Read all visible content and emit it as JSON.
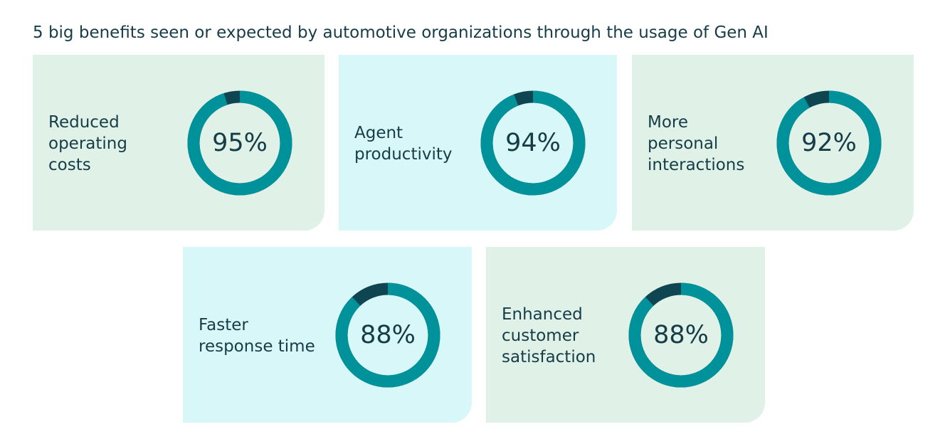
{
  "title": "5 big benefits seen or expected by automotive organizations through the usage of Gen AI",
  "colors": {
    "filled": "#00929a",
    "remainder": "#0e4550",
    "card_green": "#e0f1e8",
    "card_cyan": "#d8f7f8",
    "text": "#163d47"
  },
  "chart_data": {
    "type": "pie",
    "title": "5 big benefits seen or expected by automotive organizations through the usage of Gen AI",
    "categories": [
      "Reduced operating costs",
      "Agent productivity",
      "More personal interactions",
      "Faster response time",
      "Enhanced customer satisfaction"
    ],
    "values": [
      95,
      94,
      92,
      88,
      88
    ],
    "unit": "%",
    "cards": [
      {
        "label": "Reduced\noperating\ncosts",
        "value": 95,
        "value_label": "95%",
        "bg": "card_green"
      },
      {
        "label": "Agent\nproductivity",
        "value": 94,
        "value_label": "94%",
        "bg": "card_cyan"
      },
      {
        "label": "More\npersonal\ninteractions",
        "value": 92,
        "value_label": "92%",
        "bg": "card_green"
      },
      {
        "label": "Faster\nresponse time",
        "value": 88,
        "value_label": "88%",
        "bg": "card_cyan"
      },
      {
        "label": "Enhanced\ncustomer\nsatisfaction",
        "value": 88,
        "value_label": "88%",
        "bg": "card_green"
      }
    ]
  }
}
